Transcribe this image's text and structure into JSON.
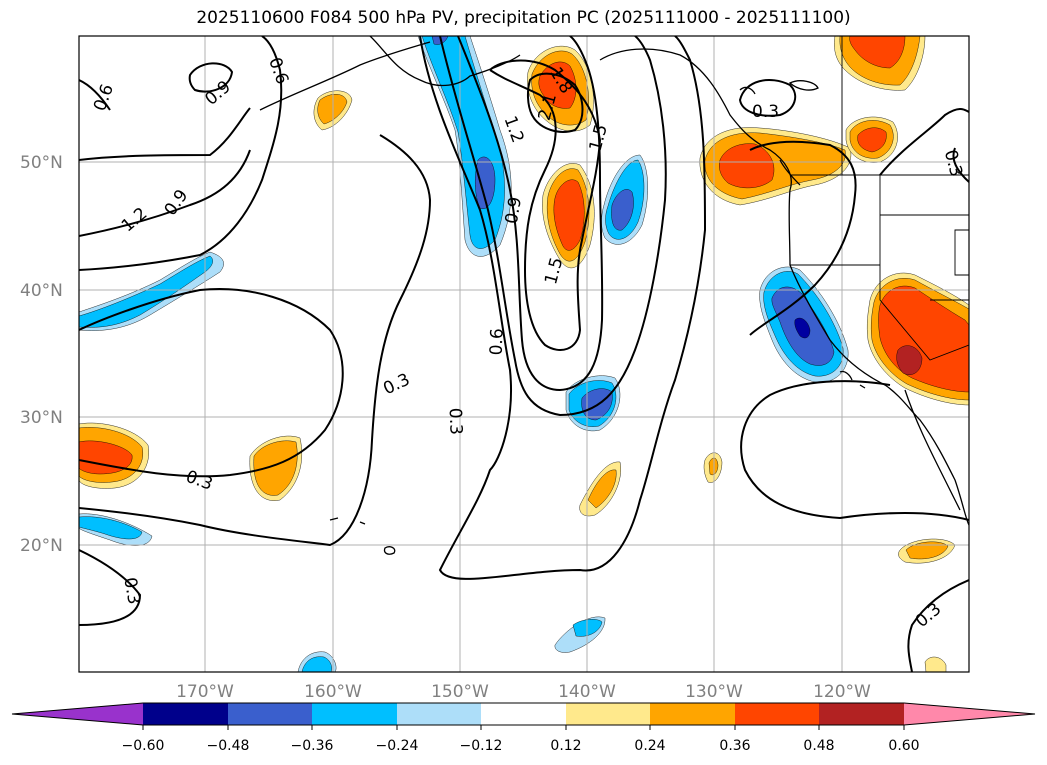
{
  "title": "2025110600 F084 500 hPa PV, precipitation PC (2025111000 - 2025111100)",
  "lat_labels": [
    "50°N",
    "40°N",
    "30°N",
    "20°N"
  ],
  "lon_labels": [
    "170°W",
    "160°W",
    "150°W",
    "140°W",
    "130°W",
    "120°W"
  ],
  "contour_labels": [
    "0.6",
    "0.9",
    "0.6",
    "1.2",
    "0.9",
    "1.8",
    "2.1",
    "1.5",
    "1.2",
    "0.9",
    "1.5",
    "0.6",
    "0.3",
    "0.3",
    "0.3",
    "0.3",
    "0.3",
    "0.3",
    "0.3"
  ],
  "colorbar": {
    "ticks": [
      "−0.60",
      "−0.48",
      "−0.36",
      "−0.24",
      "−0.12",
      "0.12",
      "0.24",
      "0.36",
      "0.48",
      "0.60"
    ],
    "colors": [
      "#9932CC",
      "#00008B",
      "#3A5FCD",
      "#00BFFF",
      "#ADDEF9",
      "#FFFFFF",
      "#FFE98C",
      "#FFA500",
      "#FF4500",
      "#B22222",
      "#FF88AA"
    ]
  },
  "palette": {
    "deep_blue": "#0000A0",
    "mid_blue": "#3A5FCD",
    "cyan": "#00BFFF",
    "light_blue": "#ADDEF9",
    "light_yellow": "#FFE98C",
    "orange": "#FFA500",
    "red_orange": "#FF4500",
    "dark_red": "#B22222"
  }
}
